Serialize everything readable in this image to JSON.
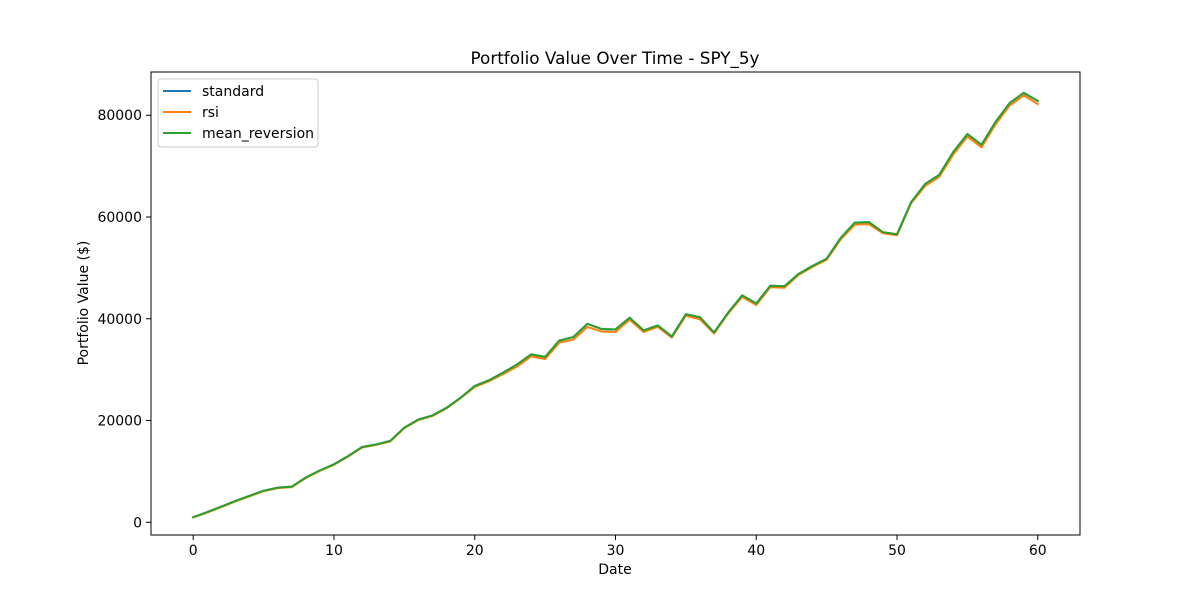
{
  "chart_data": {
    "type": "line",
    "title": "Portfolio Value Over Time - SPY_5y",
    "xlabel": "Date",
    "ylabel": "Portfolio Value ($)",
    "xlim": [
      -3,
      63
    ],
    "ylim": [
      -2500,
      88500
    ],
    "x_ticks": [
      0,
      10,
      20,
      30,
      40,
      50,
      60
    ],
    "y_ticks": [
      0,
      20000,
      40000,
      60000,
      80000
    ],
    "legend_position": "upper-left",
    "grid": false,
    "x": [
      0,
      1,
      2,
      3,
      4,
      5,
      6,
      7,
      8,
      9,
      10,
      11,
      12,
      13,
      14,
      15,
      16,
      17,
      18,
      19,
      20,
      21,
      22,
      23,
      24,
      25,
      26,
      27,
      28,
      29,
      30,
      31,
      32,
      33,
      34,
      35,
      36,
      37,
      38,
      39,
      40,
      41,
      42,
      43,
      44,
      45,
      46,
      47,
      48,
      49,
      50,
      51,
      52,
      53,
      54,
      55,
      56,
      57,
      58,
      59,
      60
    ],
    "series": [
      {
        "name": "standard",
        "color": "#1f77b4",
        "values": [
          1000,
          2000,
          3100,
          4200,
          5200,
          6200,
          6800,
          7000,
          8800,
          10200,
          11400,
          13000,
          14800,
          15300,
          16000,
          18600,
          20200,
          21000,
          22500,
          24500,
          26800,
          27900,
          29400,
          31000,
          33000,
          32500,
          35700,
          36400,
          39000,
          38000,
          37900,
          40200,
          37700,
          38700,
          36500,
          40900,
          40300,
          37300,
          41200,
          44600,
          43000,
          46500,
          46400,
          48800,
          50400,
          51800,
          55900,
          58900,
          59000,
          57000,
          56600,
          62900,
          66500,
          68300,
          72800,
          76300,
          74200,
          78700,
          82400,
          84400,
          82800
        ]
      },
      {
        "name": "rsi",
        "color": "#ff7f0e",
        "values": [
          950,
          1900,
          3000,
          4100,
          5100,
          6100,
          6700,
          6900,
          8700,
          10100,
          11300,
          12900,
          14700,
          15200,
          15900,
          18500,
          20100,
          20900,
          22400,
          24400,
          26600,
          27700,
          29100,
          30600,
          32600,
          32100,
          35300,
          35900,
          38400,
          37500,
          37400,
          39800,
          37400,
          38400,
          36300,
          40600,
          39900,
          37100,
          41000,
          44300,
          42700,
          46200,
          46100,
          48600,
          50200,
          51600,
          55600,
          58500,
          58600,
          56800,
          56400,
          62700,
          66100,
          67900,
          72300,
          75800,
          73700,
          78200,
          81900,
          83900,
          82200
        ]
      },
      {
        "name": "mean_reversion",
        "color": "#2ca02c",
        "values": [
          1000,
          2000,
          3100,
          4200,
          5200,
          6200,
          6800,
          7000,
          8800,
          10200,
          11400,
          13000,
          14800,
          15300,
          16000,
          18600,
          20200,
          21000,
          22500,
          24500,
          26800,
          27900,
          29400,
          31000,
          33000,
          32500,
          35700,
          36400,
          39000,
          38000,
          37900,
          40200,
          37700,
          38700,
          36500,
          40900,
          40300,
          37300,
          41200,
          44600,
          43000,
          46500,
          46400,
          48800,
          50400,
          51800,
          55900,
          58900,
          59000,
          57000,
          56600,
          62900,
          66500,
          68300,
          72800,
          76300,
          74200,
          78700,
          82400,
          84400,
          82800
        ]
      }
    ]
  }
}
